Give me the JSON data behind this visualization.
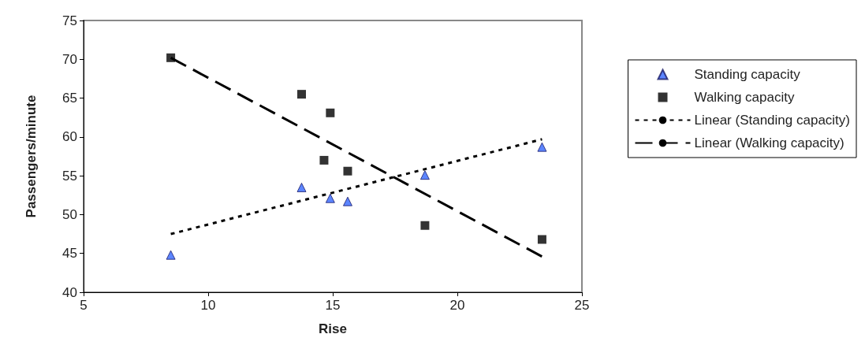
{
  "chart_data": {
    "type": "scatter",
    "xlabel": "Rise",
    "ylabel": "Passengers/minute",
    "xlim": [
      5,
      25
    ],
    "xticks": [
      5,
      10,
      15,
      20,
      25
    ],
    "ylim": [
      40,
      75
    ],
    "yticks": [
      40,
      45,
      50,
      55,
      60,
      65,
      70,
      75
    ],
    "grid": false,
    "legend": "right",
    "series": [
      {
        "name": "Standing capacity",
        "type": "scatter",
        "marker": "triangle",
        "color": "#3366ff",
        "x": [
          8.5,
          13.75,
          14.9,
          15.6,
          18.7,
          23.4
        ],
        "values": [
          44.8,
          53.5,
          52.1,
          51.7,
          55.1,
          58.7
        ]
      },
      {
        "name": "Walking capacity",
        "type": "scatter",
        "marker": "square",
        "color": "#000000",
        "x": [
          8.5,
          13.75,
          14.9,
          14.65,
          15.6,
          18.7,
          23.4
        ],
        "values": [
          70.2,
          65.5,
          63.1,
          57.0,
          55.6,
          48.6,
          46.8
        ]
      },
      {
        "name": "Linear (Standing capacity)",
        "type": "line",
        "line_style": "dotted",
        "color": "#000000",
        "x": [
          8.5,
          23.4
        ],
        "values": [
          47.5,
          59.7
        ]
      },
      {
        "name": "Linear (Walking capacity)",
        "type": "line",
        "line_style": "dashed",
        "color": "#000000",
        "x": [
          8.5,
          23.4
        ],
        "values": [
          70.2,
          44.6
        ]
      }
    ]
  }
}
